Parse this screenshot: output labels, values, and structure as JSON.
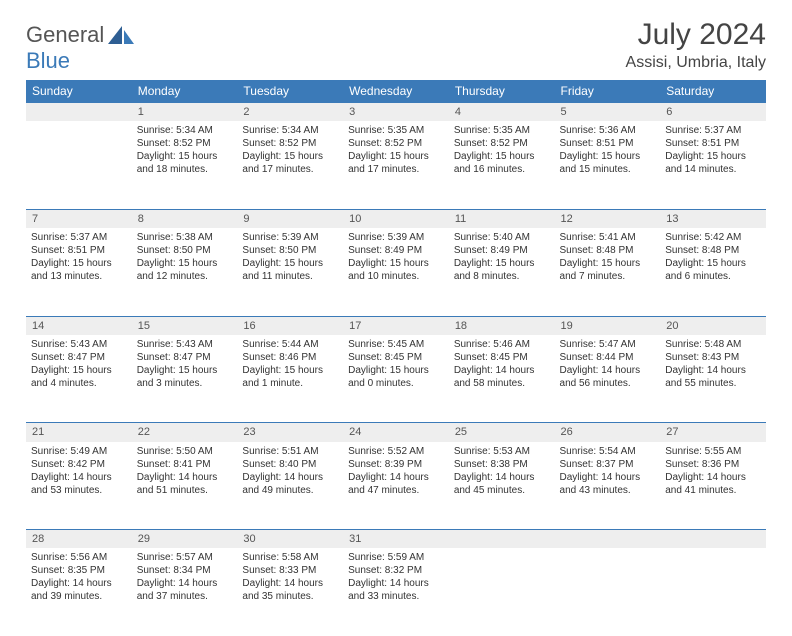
{
  "logo": {
    "part1": "General",
    "part2": "Blue"
  },
  "title": "July 2024",
  "location": "Assisi, Umbria, Italy",
  "colors": {
    "header_bg": "#3b7ab8",
    "header_text": "#ffffff",
    "daynum_bg": "#eeeeee",
    "border": "#3b7ab8",
    "body_text": "#333333",
    "logo_gray": "#555555",
    "logo_blue": "#3b7ab8"
  },
  "weekdays": [
    "Sunday",
    "Monday",
    "Tuesday",
    "Wednesday",
    "Thursday",
    "Friday",
    "Saturday"
  ],
  "weeks": [
    [
      {
        "n": "",
        "l1": "",
        "l2": "",
        "l3": "",
        "l4": ""
      },
      {
        "n": "1",
        "l1": "Sunrise: 5:34 AM",
        "l2": "Sunset: 8:52 PM",
        "l3": "Daylight: 15 hours",
        "l4": "and 18 minutes."
      },
      {
        "n": "2",
        "l1": "Sunrise: 5:34 AM",
        "l2": "Sunset: 8:52 PM",
        "l3": "Daylight: 15 hours",
        "l4": "and 17 minutes."
      },
      {
        "n": "3",
        "l1": "Sunrise: 5:35 AM",
        "l2": "Sunset: 8:52 PM",
        "l3": "Daylight: 15 hours",
        "l4": "and 17 minutes."
      },
      {
        "n": "4",
        "l1": "Sunrise: 5:35 AM",
        "l2": "Sunset: 8:52 PM",
        "l3": "Daylight: 15 hours",
        "l4": "and 16 minutes."
      },
      {
        "n": "5",
        "l1": "Sunrise: 5:36 AM",
        "l2": "Sunset: 8:51 PM",
        "l3": "Daylight: 15 hours",
        "l4": "and 15 minutes."
      },
      {
        "n": "6",
        "l1": "Sunrise: 5:37 AM",
        "l2": "Sunset: 8:51 PM",
        "l3": "Daylight: 15 hours",
        "l4": "and 14 minutes."
      }
    ],
    [
      {
        "n": "7",
        "l1": "Sunrise: 5:37 AM",
        "l2": "Sunset: 8:51 PM",
        "l3": "Daylight: 15 hours",
        "l4": "and 13 minutes."
      },
      {
        "n": "8",
        "l1": "Sunrise: 5:38 AM",
        "l2": "Sunset: 8:50 PM",
        "l3": "Daylight: 15 hours",
        "l4": "and 12 minutes."
      },
      {
        "n": "9",
        "l1": "Sunrise: 5:39 AM",
        "l2": "Sunset: 8:50 PM",
        "l3": "Daylight: 15 hours",
        "l4": "and 11 minutes."
      },
      {
        "n": "10",
        "l1": "Sunrise: 5:39 AM",
        "l2": "Sunset: 8:49 PM",
        "l3": "Daylight: 15 hours",
        "l4": "and 10 minutes."
      },
      {
        "n": "11",
        "l1": "Sunrise: 5:40 AM",
        "l2": "Sunset: 8:49 PM",
        "l3": "Daylight: 15 hours",
        "l4": "and 8 minutes."
      },
      {
        "n": "12",
        "l1": "Sunrise: 5:41 AM",
        "l2": "Sunset: 8:48 PM",
        "l3": "Daylight: 15 hours",
        "l4": "and 7 minutes."
      },
      {
        "n": "13",
        "l1": "Sunrise: 5:42 AM",
        "l2": "Sunset: 8:48 PM",
        "l3": "Daylight: 15 hours",
        "l4": "and 6 minutes."
      }
    ],
    [
      {
        "n": "14",
        "l1": "Sunrise: 5:43 AM",
        "l2": "Sunset: 8:47 PM",
        "l3": "Daylight: 15 hours",
        "l4": "and 4 minutes."
      },
      {
        "n": "15",
        "l1": "Sunrise: 5:43 AM",
        "l2": "Sunset: 8:47 PM",
        "l3": "Daylight: 15 hours",
        "l4": "and 3 minutes."
      },
      {
        "n": "16",
        "l1": "Sunrise: 5:44 AM",
        "l2": "Sunset: 8:46 PM",
        "l3": "Daylight: 15 hours",
        "l4": "and 1 minute."
      },
      {
        "n": "17",
        "l1": "Sunrise: 5:45 AM",
        "l2": "Sunset: 8:45 PM",
        "l3": "Daylight: 15 hours",
        "l4": "and 0 minutes."
      },
      {
        "n": "18",
        "l1": "Sunrise: 5:46 AM",
        "l2": "Sunset: 8:45 PM",
        "l3": "Daylight: 14 hours",
        "l4": "and 58 minutes."
      },
      {
        "n": "19",
        "l1": "Sunrise: 5:47 AM",
        "l2": "Sunset: 8:44 PM",
        "l3": "Daylight: 14 hours",
        "l4": "and 56 minutes."
      },
      {
        "n": "20",
        "l1": "Sunrise: 5:48 AM",
        "l2": "Sunset: 8:43 PM",
        "l3": "Daylight: 14 hours",
        "l4": "and 55 minutes."
      }
    ],
    [
      {
        "n": "21",
        "l1": "Sunrise: 5:49 AM",
        "l2": "Sunset: 8:42 PM",
        "l3": "Daylight: 14 hours",
        "l4": "and 53 minutes."
      },
      {
        "n": "22",
        "l1": "Sunrise: 5:50 AM",
        "l2": "Sunset: 8:41 PM",
        "l3": "Daylight: 14 hours",
        "l4": "and 51 minutes."
      },
      {
        "n": "23",
        "l1": "Sunrise: 5:51 AM",
        "l2": "Sunset: 8:40 PM",
        "l3": "Daylight: 14 hours",
        "l4": "and 49 minutes."
      },
      {
        "n": "24",
        "l1": "Sunrise: 5:52 AM",
        "l2": "Sunset: 8:39 PM",
        "l3": "Daylight: 14 hours",
        "l4": "and 47 minutes."
      },
      {
        "n": "25",
        "l1": "Sunrise: 5:53 AM",
        "l2": "Sunset: 8:38 PM",
        "l3": "Daylight: 14 hours",
        "l4": "and 45 minutes."
      },
      {
        "n": "26",
        "l1": "Sunrise: 5:54 AM",
        "l2": "Sunset: 8:37 PM",
        "l3": "Daylight: 14 hours",
        "l4": "and 43 minutes."
      },
      {
        "n": "27",
        "l1": "Sunrise: 5:55 AM",
        "l2": "Sunset: 8:36 PM",
        "l3": "Daylight: 14 hours",
        "l4": "and 41 minutes."
      }
    ],
    [
      {
        "n": "28",
        "l1": "Sunrise: 5:56 AM",
        "l2": "Sunset: 8:35 PM",
        "l3": "Daylight: 14 hours",
        "l4": "and 39 minutes."
      },
      {
        "n": "29",
        "l1": "Sunrise: 5:57 AM",
        "l2": "Sunset: 8:34 PM",
        "l3": "Daylight: 14 hours",
        "l4": "and 37 minutes."
      },
      {
        "n": "30",
        "l1": "Sunrise: 5:58 AM",
        "l2": "Sunset: 8:33 PM",
        "l3": "Daylight: 14 hours",
        "l4": "and 35 minutes."
      },
      {
        "n": "31",
        "l1": "Sunrise: 5:59 AM",
        "l2": "Sunset: 8:32 PM",
        "l3": "Daylight: 14 hours",
        "l4": "and 33 minutes."
      },
      {
        "n": "",
        "l1": "",
        "l2": "",
        "l3": "",
        "l4": ""
      },
      {
        "n": "",
        "l1": "",
        "l2": "",
        "l3": "",
        "l4": ""
      },
      {
        "n": "",
        "l1": "",
        "l2": "",
        "l3": "",
        "l4": ""
      }
    ]
  ]
}
